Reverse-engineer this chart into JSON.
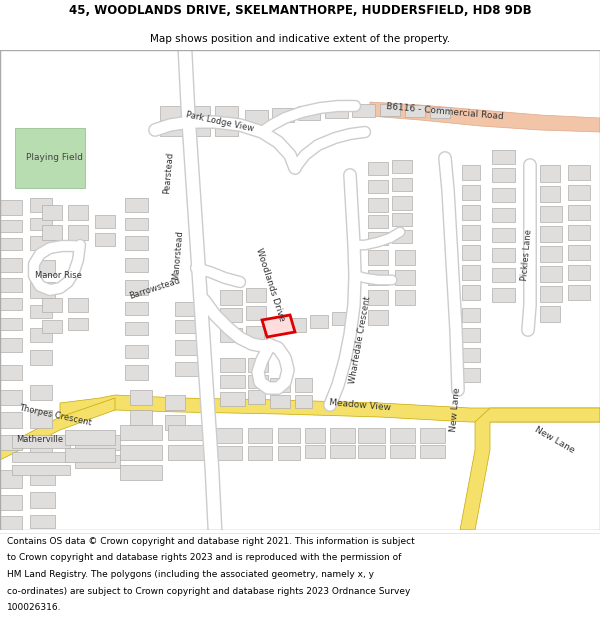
{
  "title_line1": "45, WOODLANDS DRIVE, SKELMANTHORPE, HUDDERSFIELD, HD8 9DB",
  "title_line2": "Map shows position and indicative extent of the property.",
  "footer_lines": [
    "Contains OS data © Crown copyright and database right 2021. This information is subject",
    "to Crown copyright and database rights 2023 and is reproduced with the permission of",
    "HM Land Registry. The polygons (including the associated geometry, namely x, y",
    "co-ordinates) are subject to Crown copyright and database rights 2023 Ordnance Survey",
    "100026316."
  ],
  "map_bg": "#f5f5f2",
  "playing_field_color": "#b8ddb0",
  "playing_field_edge": "#88bb88",
  "building_color": "#e0dedd",
  "building_edge": "#b0aeac",
  "road_color": "#ffffff",
  "road_edge": "#cccccc",
  "b6116_fill": "#f2c4a8",
  "b6116_edge": "#e0a888",
  "yellow_fill": "#f5e06a",
  "yellow_edge": "#c8a800",
  "highlight_edge": "#dd0000",
  "highlight_fill": "#ffdddd"
}
